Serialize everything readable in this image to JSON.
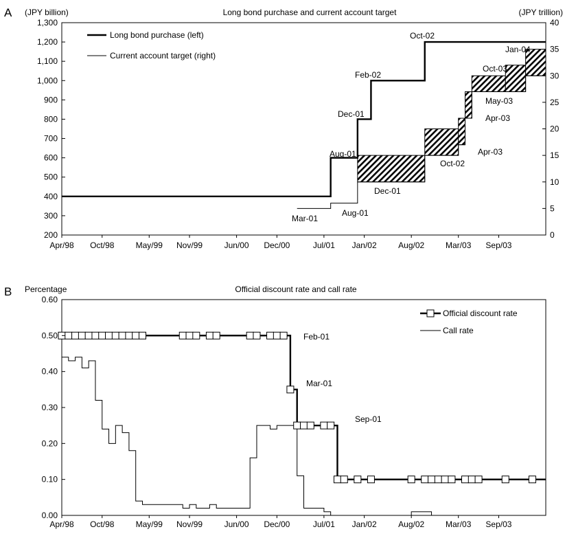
{
  "chart_data": [
    {
      "type": "line",
      "panel": "A",
      "title": "Long bond purchase and current account target",
      "ylabel_left": "(JPY billion)",
      "ylabel_right": "(JPY trillion)",
      "ylim_left": [
        200,
        1300
      ],
      "ylim_right": [
        0,
        40
      ],
      "yticks_left": [
        "200",
        "300",
        "400",
        "500",
        "600",
        "700",
        "800",
        "900",
        "1,000",
        "1,100",
        "1,200",
        "1,300"
      ],
      "yticks_right": [
        "0",
        "5",
        "10",
        "15",
        "20",
        "25",
        "30",
        "35",
        "40"
      ],
      "xlim": [
        "1998-04",
        "2004-04"
      ],
      "x_ticks": [
        {
          "label": "Apr/98",
          "x": "1998-04"
        },
        {
          "label": "Oct/98",
          "x": "1998-10"
        },
        {
          "label": "May/99",
          "x": "1999-05"
        },
        {
          "label": "Nov/99",
          "x": "1999-11"
        },
        {
          "label": "Jun/00",
          "x": "2000-06"
        },
        {
          "label": "Dec/00",
          "x": "2000-12"
        },
        {
          "label": "Jul/01",
          "x": "2001-07"
        },
        {
          "label": "Jan/02",
          "x": "2002-01"
        },
        {
          "label": "Aug/02",
          "x": "2002-08"
        },
        {
          "label": "Mar/03",
          "x": "2003-03"
        },
        {
          "label": "Sep/03",
          "x": "2003-09"
        }
      ],
      "legend_position": "top-left",
      "series": [
        {
          "name": "Long bond purchase (left)",
          "axis": "left",
          "step": true,
          "points": [
            {
              "x": "1998-04",
              "y": 400
            },
            {
              "x": "2001-08",
              "y": 600
            },
            {
              "x": "2001-12",
              "y": 800
            },
            {
              "x": "2002-02",
              "y": 1000
            },
            {
              "x": "2002-10",
              "y": 1200
            },
            {
              "x": "2004-04",
              "y": 1200
            }
          ]
        },
        {
          "name": "Current account target (right)",
          "axis": "right",
          "step": true,
          "low": [
            {
              "x": "2001-03",
              "y": 5
            },
            {
              "x": "2001-08",
              "y": 6
            },
            {
              "x": "2001-12",
              "y": 10
            },
            {
              "x": "2002-10",
              "y": 15
            },
            {
              "x": "2003-03",
              "y": 17
            },
            {
              "x": "2003-04",
              "y": 22
            },
            {
              "x": "2003-05",
              "y": 27
            },
            {
              "x": "2003-10",
              "y": 27
            },
            {
              "x": "2004-01",
              "y": 30
            },
            {
              "x": "2004-04",
              "y": 30
            }
          ],
          "high": [
            {
              "x": "2001-12",
              "y": 15
            },
            {
              "x": "2002-10",
              "y": 20
            },
            {
              "x": "2003-03",
              "y": 22
            },
            {
              "x": "2003-04",
              "y": 27
            },
            {
              "x": "2003-05",
              "y": 30
            },
            {
              "x": "2003-10",
              "y": 32
            },
            {
              "x": "2004-01",
              "y": 35
            },
            {
              "x": "2004-04",
              "y": 35
            }
          ]
        }
      ],
      "annotations": [
        {
          "text": "Aug-01"
        },
        {
          "text": "Dec-01"
        },
        {
          "text": "Feb-02"
        },
        {
          "text": "Oct-02"
        },
        {
          "text": "Mar-01"
        },
        {
          "text": "Aug-01"
        },
        {
          "text": "Dec-01"
        },
        {
          "text": "Oct-02"
        },
        {
          "text": "Apr-03"
        },
        {
          "text": "Apr-03"
        },
        {
          "text": "May-03"
        },
        {
          "text": "Oct-03"
        },
        {
          "text": "Jan-04"
        }
      ]
    },
    {
      "type": "line",
      "panel": "B",
      "title": "Official discount rate and call rate",
      "ylabel": "Percentage",
      "ylim": [
        0,
        0.6
      ],
      "yticks": [
        "0.00",
        "0.10",
        "0.20",
        "0.30",
        "0.40",
        "0.50",
        "0.60"
      ],
      "xlim": [
        "1998-04",
        "2004-04"
      ],
      "x_ticks": [
        {
          "label": "Apr/98",
          "x": "1998-04"
        },
        {
          "label": "Oct/98",
          "x": "1998-10"
        },
        {
          "label": "May/99",
          "x": "1999-05"
        },
        {
          "label": "Nov/99",
          "x": "1999-11"
        },
        {
          "label": "Jun/00",
          "x": "2000-06"
        },
        {
          "label": "Dec/00",
          "x": "2000-12"
        },
        {
          "label": "Jul/01",
          "x": "2001-07"
        },
        {
          "label": "Jan/02",
          "x": "2002-01"
        },
        {
          "label": "Aug/02",
          "x": "2002-08"
        },
        {
          "label": "Mar/03",
          "x": "2003-03"
        },
        {
          "label": "Sep/03",
          "x": "2003-09"
        }
      ],
      "legend_position": "top-right",
      "series": [
        {
          "name": "Official discount rate",
          "step": true,
          "points": [
            {
              "x": "1998-04",
              "y": 0.5
            },
            {
              "x": "2001-02",
              "y": 0.35
            },
            {
              "x": "2001-03",
              "y": 0.25
            },
            {
              "x": "2001-09",
              "y": 0.1
            },
            {
              "x": "2004-04",
              "y": 0.1
            }
          ],
          "markers": [
            "1998-04",
            "1998-05",
            "1998-06",
            "1998-07",
            "1998-08",
            "1998-09",
            "1998-10",
            "1998-11",
            "1998-12",
            "1999-01",
            "1999-02",
            "1999-03",
            "1999-04",
            "1999-10",
            "1999-11",
            "1999-12",
            "2000-02",
            "2000-03",
            "2000-08",
            "2000-09",
            "2000-11",
            "2000-12",
            "2001-01",
            "2001-02",
            "2001-03",
            "2001-04",
            "2001-05",
            "2001-07",
            "2001-08",
            "2001-09",
            "2001-10",
            "2001-12",
            "2002-02",
            "2002-08",
            "2002-10",
            "2002-11",
            "2002-12",
            "2003-01",
            "2003-02",
            "2003-04",
            "2003-05",
            "2003-06",
            "2003-10",
            "2004-02"
          ],
          "marker_values": [
            0.5,
            0.5,
            0.5,
            0.5,
            0.5,
            0.5,
            0.5,
            0.5,
            0.5,
            0.5,
            0.5,
            0.5,
            0.5,
            0.5,
            0.5,
            0.5,
            0.5,
            0.5,
            0.5,
            0.5,
            0.5,
            0.5,
            0.5,
            0.35,
            0.25,
            0.25,
            0.25,
            0.25,
            0.25,
            0.1,
            0.1,
            0.1,
            0.1,
            0.1,
            0.1,
            0.1,
            0.1,
            0.1,
            0.1,
            0.1,
            0.1,
            0.1,
            0.1,
            0.1
          ]
        },
        {
          "name": "Call rate",
          "step": true,
          "points": [
            {
              "x": "1998-04",
              "y": 0.44
            },
            {
              "x": "1998-05",
              "y": 0.43
            },
            {
              "x": "1998-06",
              "y": 0.44
            },
            {
              "x": "1998-07",
              "y": 0.41
            },
            {
              "x": "1998-08",
              "y": 0.43
            },
            {
              "x": "1998-09",
              "y": 0.32
            },
            {
              "x": "1998-10",
              "y": 0.24
            },
            {
              "x": "1998-11",
              "y": 0.2
            },
            {
              "x": "1998-12",
              "y": 0.25
            },
            {
              "x": "1999-01",
              "y": 0.23
            },
            {
              "x": "1999-02",
              "y": 0.18
            },
            {
              "x": "1999-03",
              "y": 0.04
            },
            {
              "x": "1999-04",
              "y": 0.03
            },
            {
              "x": "1999-10",
              "y": 0.02
            },
            {
              "x": "1999-11",
              "y": 0.03
            },
            {
              "x": "1999-12",
              "y": 0.02
            },
            {
              "x": "2000-02",
              "y": 0.03
            },
            {
              "x": "2000-03",
              "y": 0.02
            },
            {
              "x": "2000-08",
              "y": 0.16
            },
            {
              "x": "2000-09",
              "y": 0.25
            },
            {
              "x": "2000-11",
              "y": 0.24
            },
            {
              "x": "2000-12",
              "y": 0.25
            },
            {
              "x": "2001-02",
              "y": 0.25
            },
            {
              "x": "2001-03",
              "y": 0.11
            },
            {
              "x": "2001-04",
              "y": 0.02
            },
            {
              "x": "2001-07",
              "y": 0.01
            },
            {
              "x": "2001-08",
              "y": 0.0
            },
            {
              "x": "2002-08",
              "y": 0.01
            },
            {
              "x": "2002-11",
              "y": 0.0
            },
            {
              "x": "2004-04",
              "y": 0.0
            }
          ]
        }
      ],
      "annotations": [
        {
          "text": "Feb-01"
        },
        {
          "text": "Mar-01"
        },
        {
          "text": "Sep-01"
        }
      ]
    }
  ]
}
